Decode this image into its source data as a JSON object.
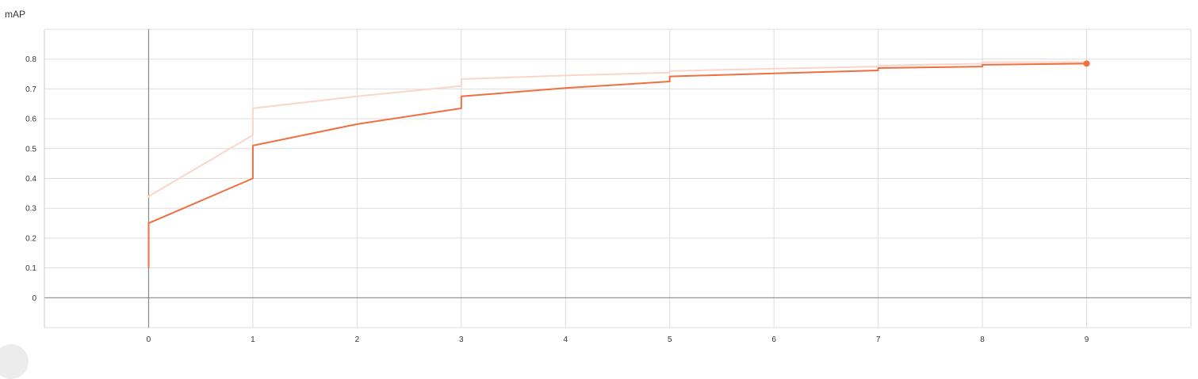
{
  "chart_data": {
    "type": "line",
    "title": "mAP",
    "xlim": [
      -1,
      10
    ],
    "ylim": [
      -0.1,
      0.9
    ],
    "x_ticks": [
      0,
      1,
      2,
      3,
      4,
      5,
      6,
      7,
      8,
      9
    ],
    "y_ticks": [
      0,
      0.1,
      0.2,
      0.3,
      0.4,
      0.5,
      0.6,
      0.7,
      0.8
    ],
    "y_tick_labels": [
      "0",
      "0.1",
      "0.2",
      "0.3",
      "0.4",
      "0.5",
      "0.6",
      "0.7",
      "0.8"
    ],
    "grid": true,
    "colors": {
      "smoothed": "#f06f3e",
      "raw": "#f9d6c8",
      "zero_line": "#888888",
      "grid": "#dddddd"
    },
    "series": [
      {
        "role": "raw",
        "points": [
          [
            0,
            0.335
          ],
          [
            0,
            0.34
          ],
          [
            1,
            0.545
          ],
          [
            1,
            0.635
          ],
          [
            2,
            0.675
          ],
          [
            3,
            0.71
          ],
          [
            3,
            0.733
          ],
          [
            4,
            0.745
          ],
          [
            5,
            0.755
          ],
          [
            5,
            0.76
          ],
          [
            6,
            0.768
          ],
          [
            7,
            0.775
          ],
          [
            7,
            0.778
          ],
          [
            8,
            0.785
          ],
          [
            8,
            0.79
          ],
          [
            9,
            0.79
          ]
        ]
      },
      {
        "role": "smoothed",
        "points": [
          [
            0,
            0.1
          ],
          [
            0,
            0.25
          ],
          [
            1,
            0.4
          ],
          [
            1,
            0.51
          ],
          [
            2,
            0.582
          ],
          [
            3,
            0.635
          ],
          [
            3,
            0.675
          ],
          [
            4,
            0.703
          ],
          [
            5,
            0.725
          ],
          [
            5,
            0.742
          ],
          [
            6,
            0.752
          ],
          [
            7,
            0.762
          ],
          [
            7,
            0.77
          ],
          [
            8,
            0.775
          ],
          [
            8,
            0.781
          ],
          [
            9,
            0.785
          ]
        ],
        "end_marker": true
      }
    ]
  }
}
